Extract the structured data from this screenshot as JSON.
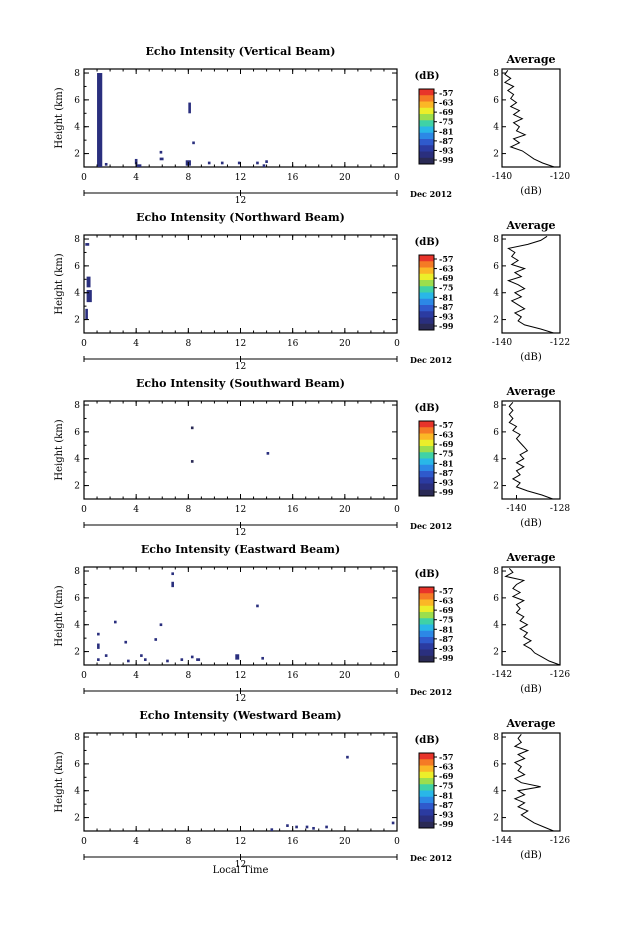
{
  "colorbar": {
    "unit": "(dB)",
    "levels": [
      "-57",
      "-63",
      "-69",
      "-75",
      "-81",
      "-87",
      "-93",
      "-99"
    ],
    "colors": [
      "#e8342a",
      "#f57a25",
      "#fbb726",
      "#ecee2a",
      "#9cde4d",
      "#3fd2a6",
      "#29b7e8",
      "#2c88e6",
      "#2f5acc",
      "#2b3ba1",
      "#2a2f7e",
      "#2a2a55"
    ]
  },
  "common": {
    "x_ticks": [
      "0",
      "4",
      "8",
      "12",
      "16",
      "20",
      "0"
    ],
    "x_ticks_values": [
      0,
      4,
      8,
      12,
      16,
      20,
      24
    ],
    "date_ticks": [
      "12"
    ],
    "date_label": "Dec 2012",
    "ylabel": "Height (km)",
    "y_ticks": [
      "2",
      "4",
      "6",
      "8"
    ],
    "y_ticks_values": [
      2,
      4,
      6,
      8
    ],
    "xlabel": "Local Time",
    "avg_title": "Average",
    "avg_xlabel": "(dB)"
  },
  "chart_data": [
    {
      "type": "heatmap",
      "title": "Echo Intensity (Vertical Beam)",
      "xlim": [
        0,
        24
      ],
      "ylim": [
        1,
        8.3
      ],
      "cells": [
        [
          1.0,
          1.4,
          1.0,
          8.0,
          -97
        ],
        [
          1.1,
          1.3,
          4.5,
          6.0,
          -95
        ],
        [
          1.6,
          1.8,
          1.1,
          1.3,
          -97
        ],
        [
          3.9,
          4.1,
          1.2,
          1.6,
          -96
        ],
        [
          4.0,
          4.4,
          1.0,
          1.2,
          -97
        ],
        [
          5.8,
          6.1,
          1.5,
          1.7,
          -96
        ],
        [
          5.8,
          6.0,
          2.0,
          2.2,
          -97
        ],
        [
          7.8,
          8.2,
          1.1,
          1.5,
          -96
        ],
        [
          8.0,
          8.2,
          5.0,
          5.8,
          -96
        ],
        [
          8.3,
          8.5,
          2.7,
          2.9,
          -97
        ],
        [
          9.5,
          9.7,
          1.2,
          1.4,
          -97
        ],
        [
          10.5,
          10.7,
          1.2,
          1.4,
          -97
        ],
        [
          11.8,
          12.0,
          1.2,
          1.4,
          -97
        ],
        [
          13.2,
          13.4,
          1.2,
          1.4,
          -97
        ],
        [
          13.7,
          13.9,
          1.0,
          1.2,
          -97
        ],
        [
          13.9,
          14.1,
          1.3,
          1.5,
          -97
        ]
      ],
      "avg": {
        "xlim": [
          -140,
          -120
        ],
        "x_ticks": [
          "-140",
          "-120"
        ],
        "x_ticks_values": [
          -140,
          -120
        ],
        "y_ticks": [
          "2",
          "4",
          "6",
          "8"
        ],
        "profile": [
          [
            1.0,
            -122
          ],
          [
            1.3,
            -126
          ],
          [
            1.6,
            -129
          ],
          [
            1.9,
            -131
          ],
          [
            2.2,
            -133
          ],
          [
            2.5,
            -137
          ],
          [
            2.8,
            -134
          ],
          [
            3.1,
            -136
          ],
          [
            3.4,
            -132
          ],
          [
            3.7,
            -135
          ],
          [
            4.0,
            -134
          ],
          [
            4.3,
            -136
          ],
          [
            4.6,
            -133
          ],
          [
            4.9,
            -136
          ],
          [
            5.2,
            -134
          ],
          [
            5.5,
            -137
          ],
          [
            5.8,
            -135
          ],
          [
            6.1,
            -137
          ],
          [
            6.4,
            -136
          ],
          [
            6.7,
            -138
          ],
          [
            7.0,
            -136
          ],
          [
            7.3,
            -139
          ],
          [
            7.6,
            -137
          ],
          [
            7.9,
            -139
          ],
          [
            8.2,
            -138
          ]
        ]
      }
    },
    {
      "type": "heatmap",
      "title": "Echo Intensity (Northward Beam)",
      "xlim": [
        0,
        24
      ],
      "ylim": [
        1,
        8.3
      ],
      "cells": [
        [
          0.1,
          0.4,
          7.5,
          7.7,
          -97
        ],
        [
          0.2,
          0.5,
          4.4,
          5.2,
          -96
        ],
        [
          0.2,
          0.6,
          3.3,
          4.2,
          -96
        ],
        [
          0.1,
          0.3,
          2.0,
          2.8,
          -97
        ]
      ],
      "avg": {
        "xlim": [
          -140,
          -122
        ],
        "x_ticks": [
          "-140",
          "-122"
        ],
        "x_ticks_values": [
          -140,
          -122
        ],
        "y_ticks": [
          "2",
          "4",
          "6",
          "8"
        ],
        "profile": [
          [
            1.0,
            -124
          ],
          [
            1.3,
            -128
          ],
          [
            1.6,
            -133
          ],
          [
            1.9,
            -135
          ],
          [
            2.2,
            -134
          ],
          [
            2.5,
            -136
          ],
          [
            2.8,
            -133
          ],
          [
            3.1,
            -135
          ],
          [
            3.4,
            -137
          ],
          [
            3.7,
            -134
          ],
          [
            4.0,
            -136
          ],
          [
            4.3,
            -133
          ],
          [
            4.6,
            -135
          ],
          [
            4.9,
            -138
          ],
          [
            5.2,
            -134
          ],
          [
            5.5,
            -136
          ],
          [
            5.8,
            -133
          ],
          [
            6.1,
            -137
          ],
          [
            6.4,
            -135
          ],
          [
            6.7,
            -137
          ],
          [
            7.0,
            -136
          ],
          [
            7.3,
            -138
          ],
          [
            7.6,
            -132
          ],
          [
            7.9,
            -128
          ],
          [
            8.2,
            -126
          ]
        ]
      }
    },
    {
      "type": "heatmap",
      "title": "Echo Intensity (Southward Beam)",
      "xlim": [
        0,
        24
      ],
      "ylim": [
        1,
        8.3
      ],
      "cells": [
        [
          8.2,
          8.4,
          6.2,
          6.4,
          -98
        ],
        [
          8.2,
          8.4,
          3.7,
          3.9,
          -98
        ],
        [
          14.0,
          14.2,
          4.3,
          4.5,
          -97
        ]
      ],
      "avg": {
        "xlim": [
          -144,
          -128
        ],
        "x_ticks": [
          "-140",
          "-128"
        ],
        "x_ticks_values": [
          -140,
          -128
        ],
        "y_ticks": [
          "2",
          "4",
          "6",
          "8"
        ],
        "profile": [
          [
            1.0,
            -130
          ],
          [
            1.3,
            -133
          ],
          [
            1.6,
            -137
          ],
          [
            1.9,
            -140
          ],
          [
            2.2,
            -139
          ],
          [
            2.5,
            -141
          ],
          [
            2.8,
            -139
          ],
          [
            3.1,
            -140
          ],
          [
            3.4,
            -138
          ],
          [
            3.7,
            -140
          ],
          [
            4.0,
            -138
          ],
          [
            4.3,
            -139
          ],
          [
            4.6,
            -137
          ],
          [
            4.9,
            -138
          ],
          [
            5.2,
            -139
          ],
          [
            5.5,
            -140
          ],
          [
            5.8,
            -139
          ],
          [
            6.1,
            -141
          ],
          [
            6.4,
            -140
          ],
          [
            6.7,
            -142
          ],
          [
            7.0,
            -141
          ],
          [
            7.3,
            -142
          ],
          [
            7.6,
            -141
          ],
          [
            7.9,
            -142
          ],
          [
            8.2,
            -141
          ]
        ]
      }
    },
    {
      "type": "heatmap",
      "title": "Echo Intensity (Eastward Beam)",
      "xlim": [
        0,
        24
      ],
      "ylim": [
        1,
        8.3
      ],
      "cells": [
        [
          1.0,
          1.2,
          3.2,
          3.4,
          -97
        ],
        [
          1.0,
          1.2,
          2.2,
          2.6,
          -96
        ],
        [
          1.0,
          1.2,
          1.3,
          1.5,
          -96
        ],
        [
          1.6,
          1.8,
          1.6,
          1.8,
          -97
        ],
        [
          2.3,
          2.5,
          4.1,
          4.3,
          -97
        ],
        [
          3.1,
          3.3,
          2.6,
          2.8,
          -96
        ],
        [
          3.3,
          3.5,
          1.2,
          1.4,
          -97
        ],
        [
          4.3,
          4.5,
          1.6,
          1.8,
          -97
        ],
        [
          4.6,
          4.8,
          1.3,
          1.5,
          -97
        ],
        [
          5.4,
          5.6,
          2.8,
          3.0,
          -96
        ],
        [
          5.8,
          6.0,
          3.9,
          4.1,
          -97
        ],
        [
          6.3,
          6.5,
          1.2,
          1.4,
          -97
        ],
        [
          6.7,
          6.9,
          7.7,
          7.9,
          -96
        ],
        [
          6.7,
          6.9,
          6.8,
          7.2,
          -96
        ],
        [
          7.4,
          7.6,
          1.3,
          1.5,
          -97
        ],
        [
          8.2,
          8.4,
          1.5,
          1.7,
          -97
        ],
        [
          8.6,
          8.9,
          1.3,
          1.5,
          -96
        ],
        [
          11.6,
          11.9,
          1.4,
          1.8,
          -96
        ],
        [
          13.2,
          13.4,
          5.3,
          5.5,
          -97
        ],
        [
          13.6,
          13.8,
          1.4,
          1.6,
          -97
        ]
      ],
      "avg": {
        "xlim": [
          -142,
          -126
        ],
        "x_ticks": [
          "-142",
          "-126"
        ],
        "x_ticks_values": [
          -142,
          -126
        ],
        "y_ticks": [
          "2",
          "4",
          "6",
          "8"
        ],
        "profile": [
          [
            1.0,
            -126
          ],
          [
            1.3,
            -129
          ],
          [
            1.6,
            -131
          ],
          [
            1.9,
            -133
          ],
          [
            2.2,
            -134
          ],
          [
            2.5,
            -136
          ],
          [
            2.8,
            -134
          ],
          [
            3.1,
            -136
          ],
          [
            3.4,
            -135
          ],
          [
            3.7,
            -137
          ],
          [
            4.0,
            -135
          ],
          [
            4.3,
            -137
          ],
          [
            4.6,
            -136
          ],
          [
            4.9,
            -138
          ],
          [
            5.2,
            -137
          ],
          [
            5.5,
            -138
          ],
          [
            5.8,
            -136
          ],
          [
            6.1,
            -139
          ],
          [
            6.4,
            -137
          ],
          [
            6.7,
            -139
          ],
          [
            7.0,
            -138
          ],
          [
            7.3,
            -136
          ],
          [
            7.6,
            -141
          ],
          [
            7.9,
            -139
          ],
          [
            8.2,
            -140
          ]
        ]
      }
    },
    {
      "type": "heatmap",
      "title": "Echo Intensity (Westward Beam)",
      "xlim": [
        0,
        24
      ],
      "ylim": [
        1,
        8.3
      ],
      "cells": [
        [
          14.3,
          14.5,
          1.0,
          1.2,
          -97
        ],
        [
          15.5,
          15.7,
          1.3,
          1.5,
          -96
        ],
        [
          16.2,
          16.4,
          1.2,
          1.4,
          -97
        ],
        [
          17.0,
          17.2,
          1.2,
          1.4,
          -97
        ],
        [
          17.5,
          17.7,
          1.1,
          1.3,
          -97
        ],
        [
          18.5,
          18.7,
          1.2,
          1.4,
          -97
        ],
        [
          20.1,
          20.3,
          6.4,
          6.6,
          -97
        ],
        [
          23.6,
          23.8,
          1.5,
          1.7,
          -97
        ]
      ],
      "avg": {
        "xlim": [
          -144,
          -126
        ],
        "x_ticks": [
          "-144",
          "-126"
        ],
        "x_ticks_values": [
          -144,
          -126
        ],
        "y_ticks": [
          "2",
          "4",
          "6",
          "8"
        ],
        "profile": [
          [
            1.0,
            -128
          ],
          [
            1.3,
            -131
          ],
          [
            1.6,
            -134
          ],
          [
            1.9,
            -136
          ],
          [
            2.2,
            -138
          ],
          [
            2.5,
            -136
          ],
          [
            2.8,
            -139
          ],
          [
            3.1,
            -137
          ],
          [
            3.4,
            -140
          ],
          [
            3.7,
            -137
          ],
          [
            4.0,
            -139
          ],
          [
            4.3,
            -132
          ],
          [
            4.6,
            -138
          ],
          [
            4.9,
            -140
          ],
          [
            5.2,
            -137
          ],
          [
            5.5,
            -139
          ],
          [
            5.8,
            -138
          ],
          [
            6.1,
            -140
          ],
          [
            6.4,
            -137
          ],
          [
            6.7,
            -139
          ],
          [
            7.0,
            -136
          ],
          [
            7.3,
            -140
          ],
          [
            7.6,
            -138
          ],
          [
            7.9,
            -139
          ],
          [
            8.2,
            -138
          ]
        ]
      }
    }
  ]
}
